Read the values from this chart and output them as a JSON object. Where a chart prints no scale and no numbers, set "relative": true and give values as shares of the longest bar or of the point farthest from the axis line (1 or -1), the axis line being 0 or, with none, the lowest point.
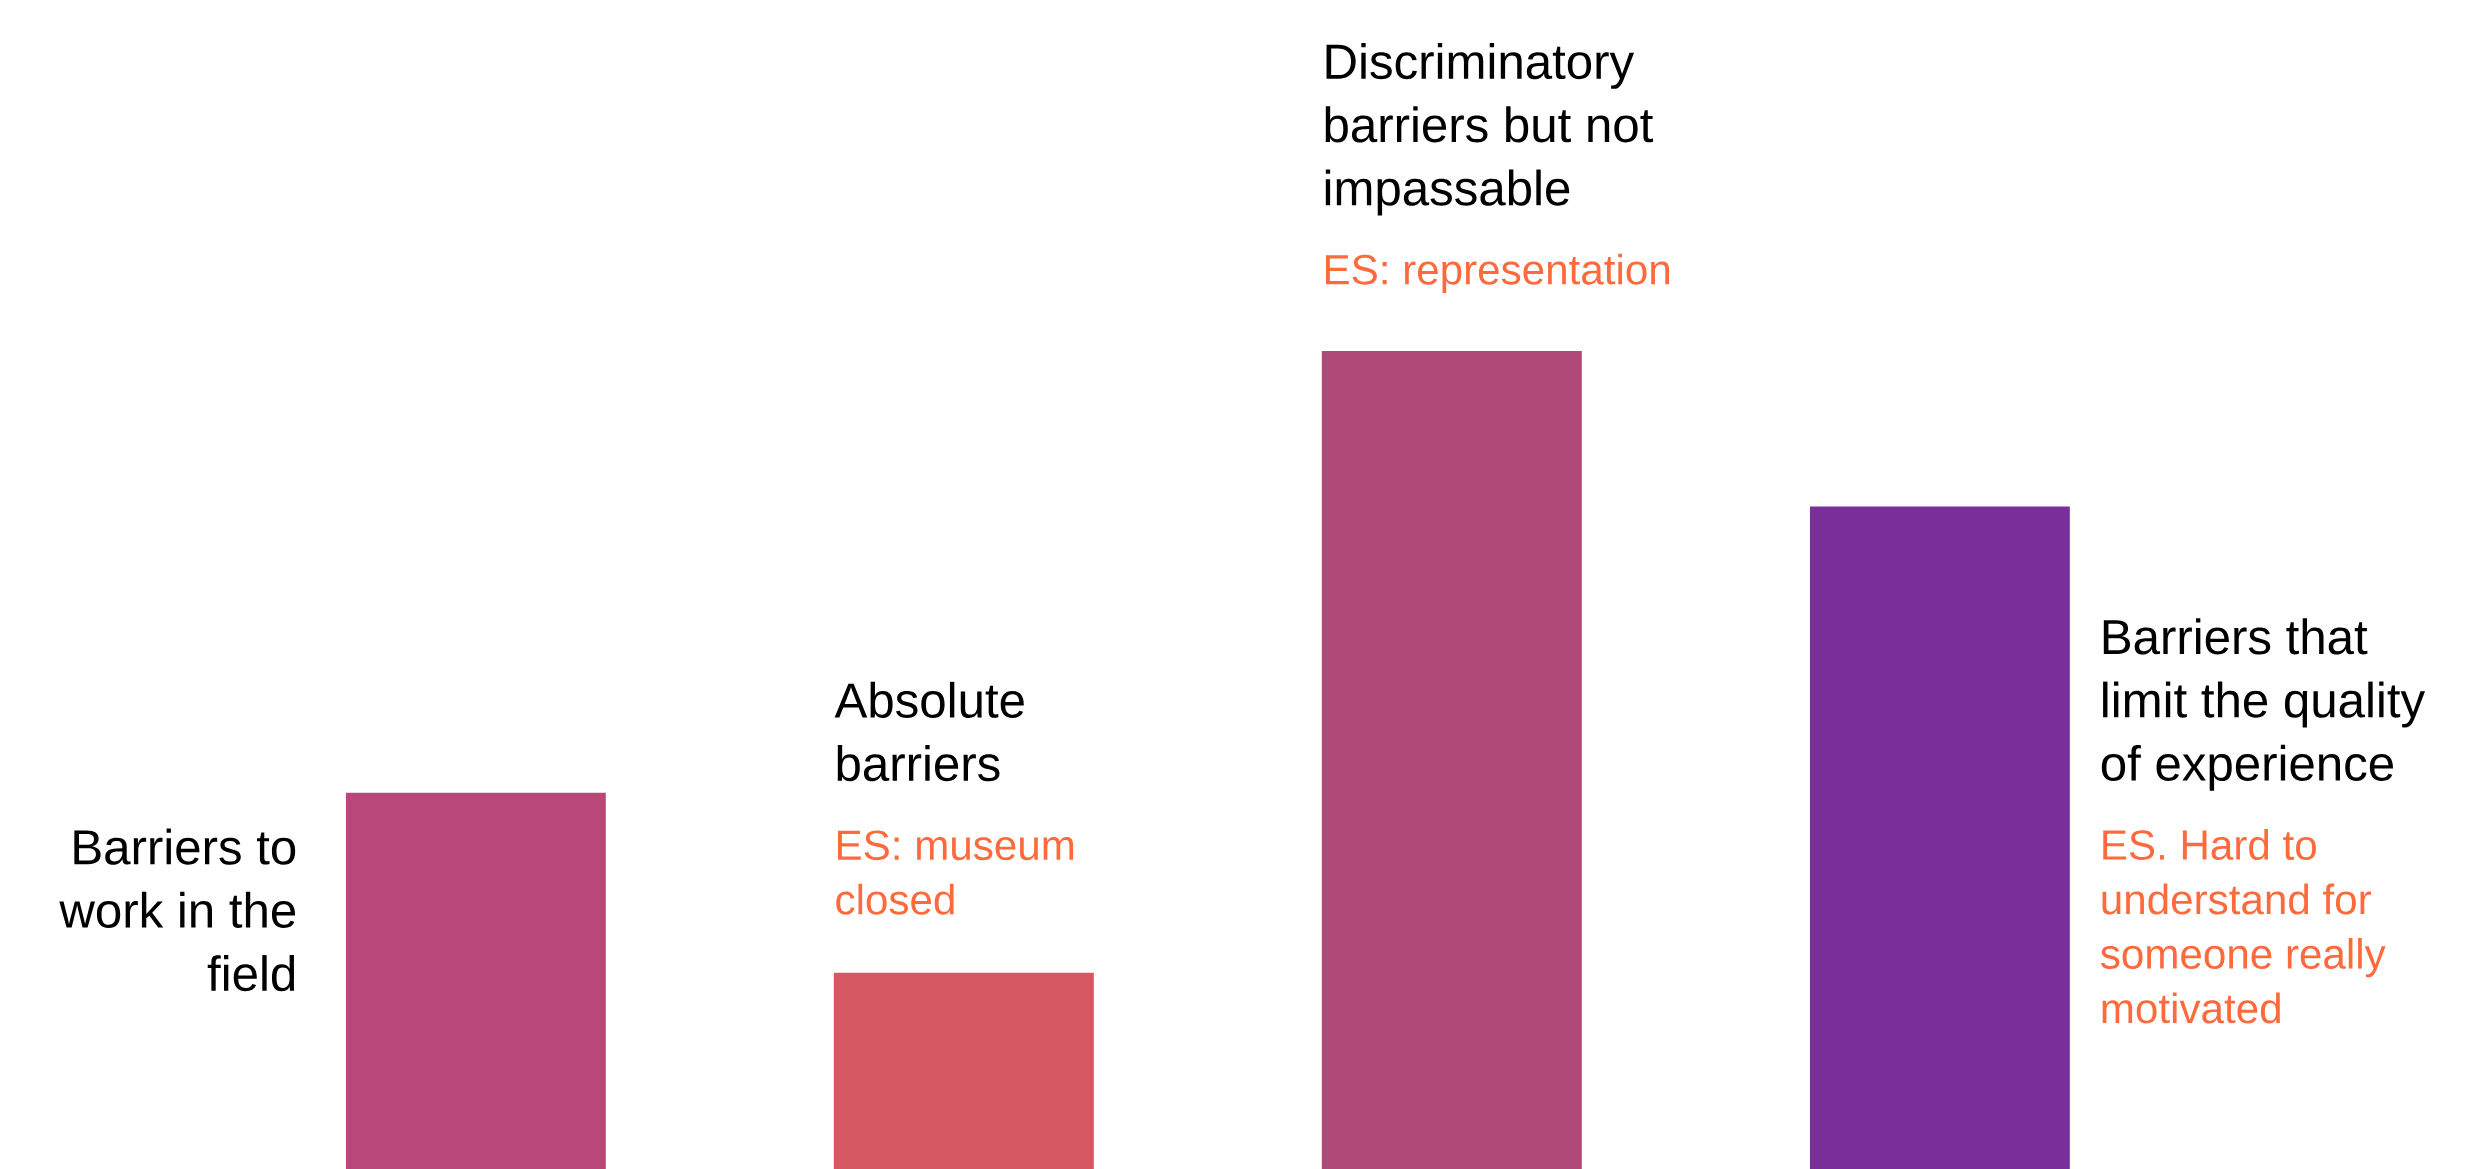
{
  "chart_data": {
    "type": "bar",
    "relative": true,
    "categories": [
      null,
      null,
      null,
      null
    ],
    "values": [
      0.46,
      0.24,
      1,
      0.81
    ],
    "colors": [
      "#b8487a",
      "#d65862",
      "#b04878",
      "#7a2e9a"
    ],
    "annotations": [
      "Barriers to work in the field",
      "Absolute barriers",
      "ES: museum closed",
      "Discriminatory barriers but not impassable",
      "ES: representation",
      "Barriers that limit the quality of experience",
      "ES. Hard to understand for someone really motivated"
    ]
  }
}
